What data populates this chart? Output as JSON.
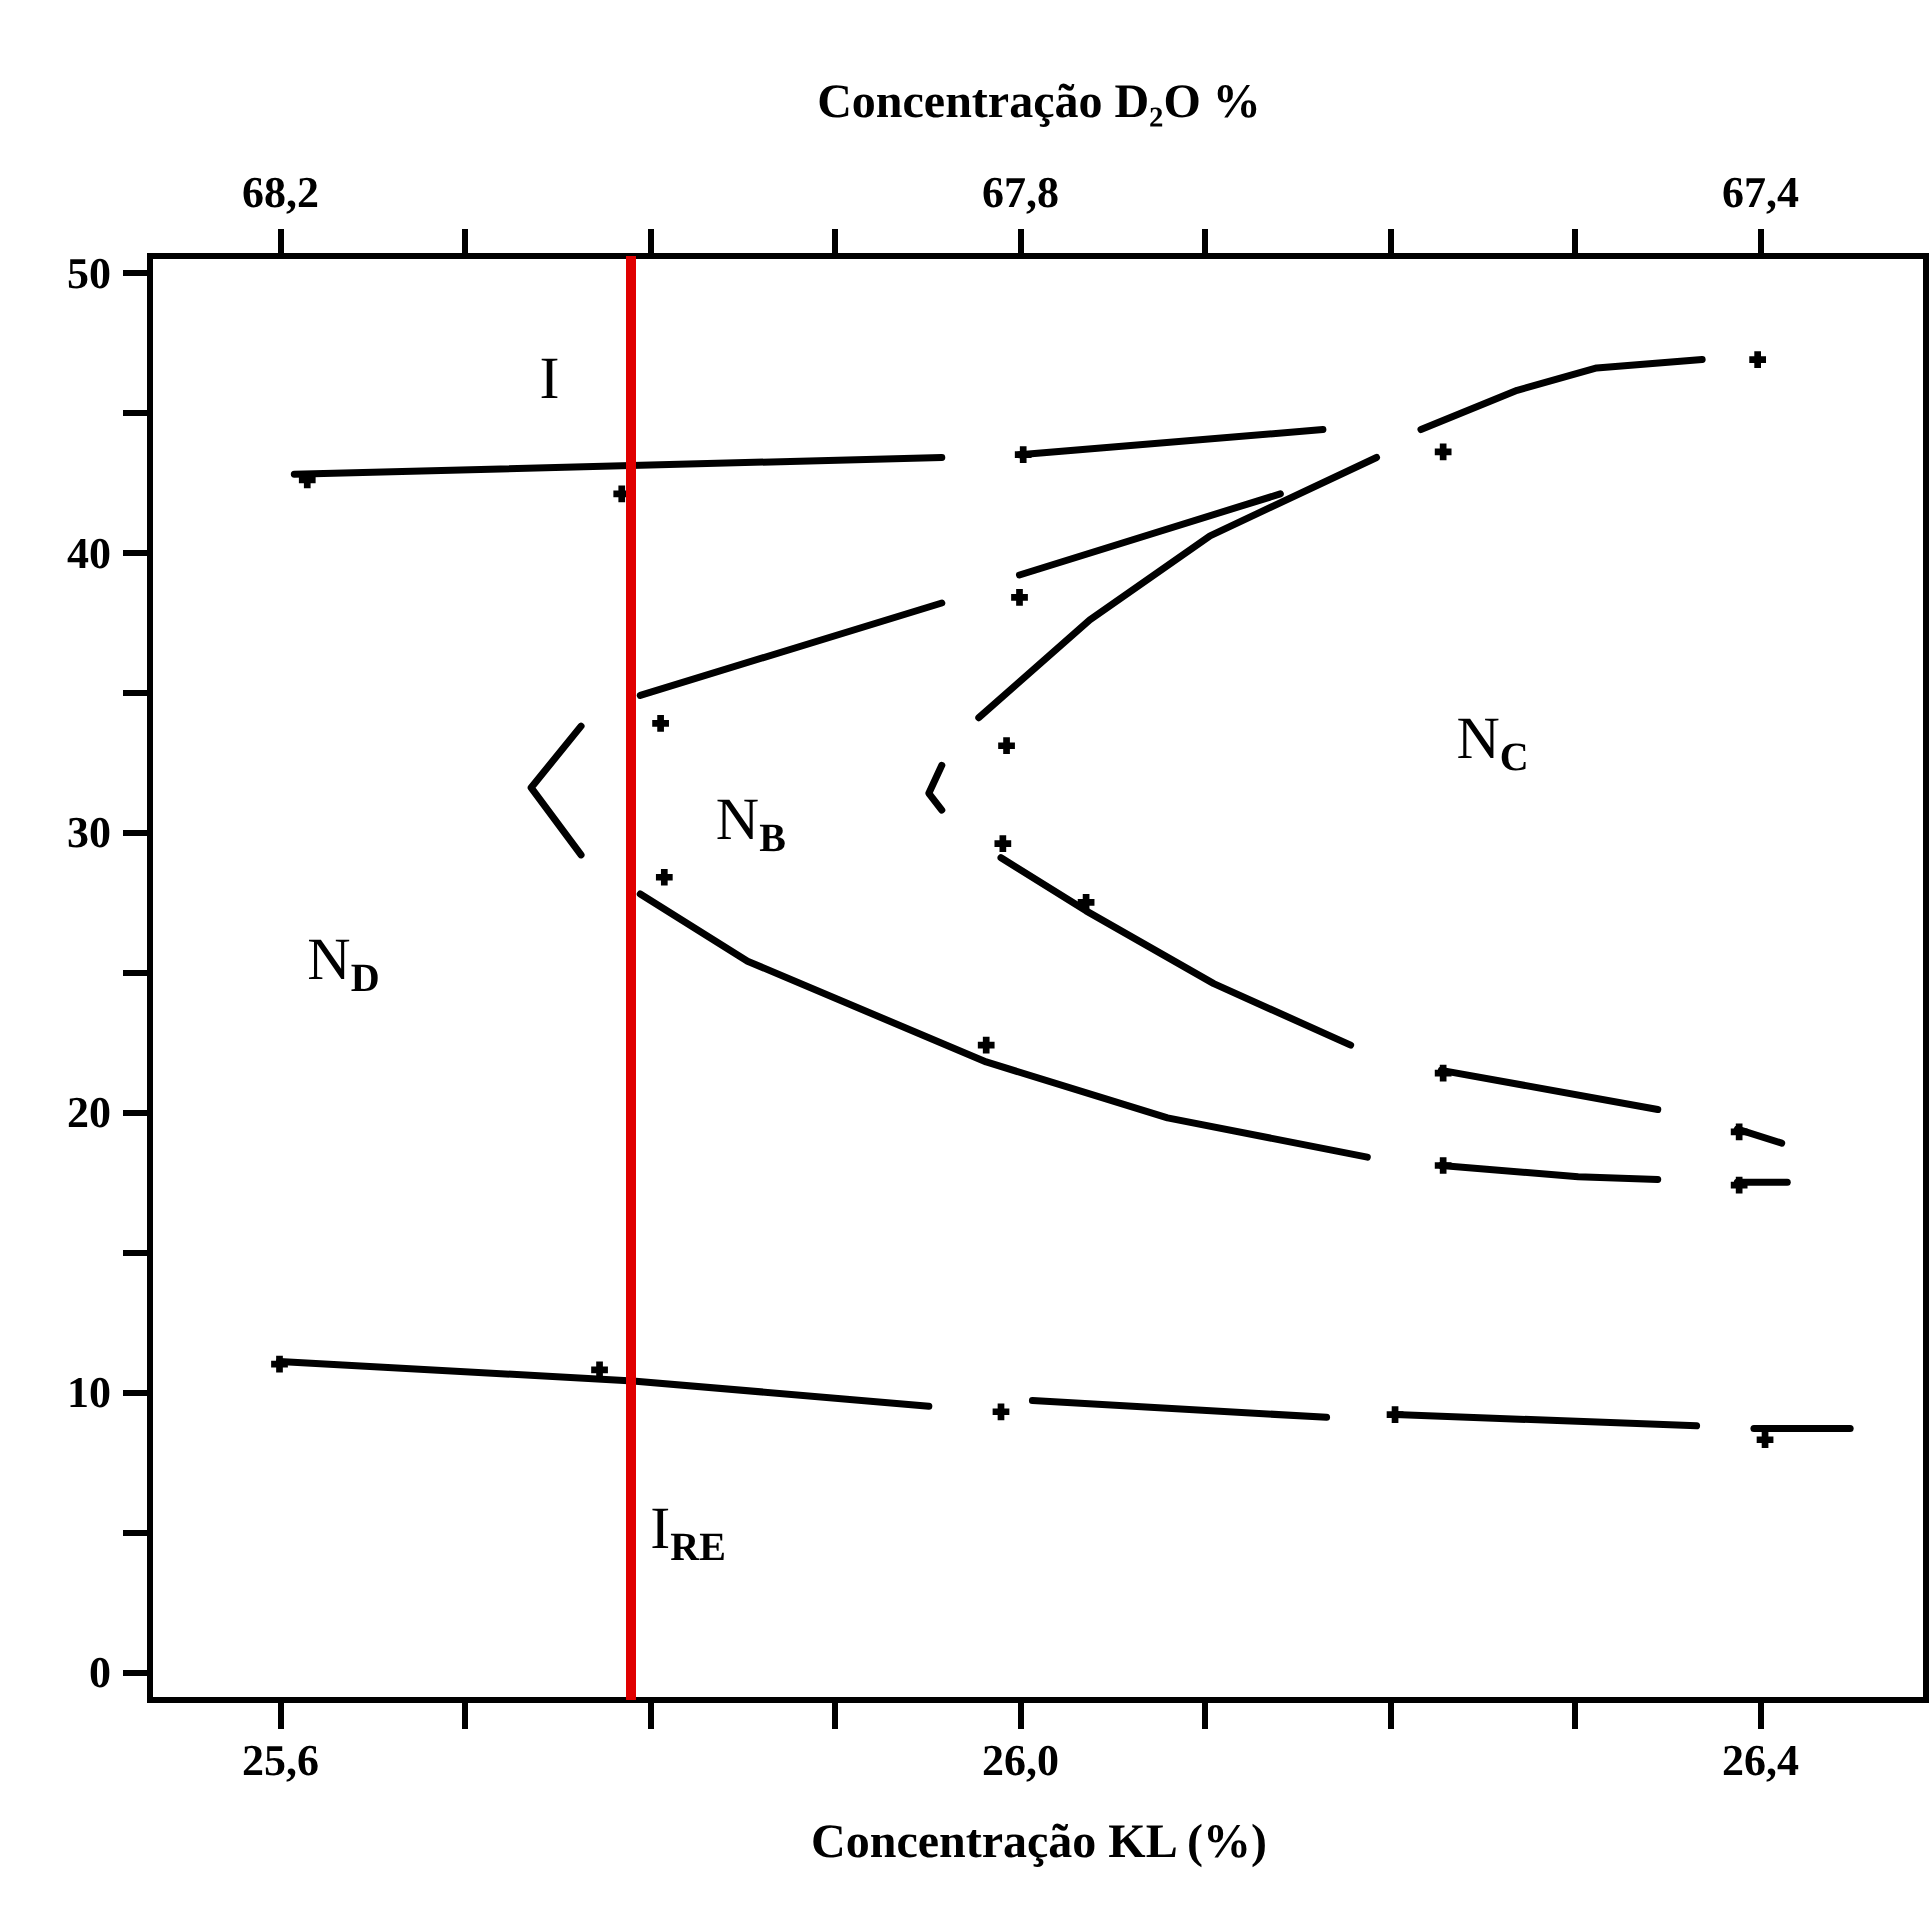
{
  "chart_data": {
    "type": "line",
    "xlabel": "Concentração KL (%)",
    "x2label": "Concentração D₂O %",
    "xlim": [
      25.53,
      26.49
    ],
    "xticks": [
      {
        "value": 25.6,
        "label": "25,6"
      },
      {
        "value": 25.7,
        "label": null
      },
      {
        "value": 25.8,
        "label": null
      },
      {
        "value": 25.9,
        "label": null
      },
      {
        "value": 26.0,
        "label": "26,0"
      },
      {
        "value": 26.1,
        "label": null
      },
      {
        "value": 26.2,
        "label": null
      },
      {
        "value": 26.3,
        "label": null
      },
      {
        "value": 26.4,
        "label": "26,4"
      }
    ],
    "x2lim": [
      68.27,
      67.31
    ],
    "x2ticks": [
      {
        "value": 68.2,
        "label": "68,2"
      },
      {
        "value": 68.1,
        "label": null
      },
      {
        "value": 68.0,
        "label": null
      },
      {
        "value": 67.9,
        "label": null
      },
      {
        "value": 67.8,
        "label": "67,8"
      },
      {
        "value": 67.7,
        "label": null
      },
      {
        "value": 67.6,
        "label": null
      },
      {
        "value": 67.5,
        "label": null
      },
      {
        "value": 67.4,
        "label": "67,4"
      }
    ],
    "ylim": [
      -1,
      50.6
    ],
    "yticks": [
      0,
      {
        "value": 5,
        "label": null
      },
      10,
      {
        "value": 15,
        "label": null
      },
      20,
      {
        "value": 25,
        "label": null
      },
      30,
      {
        "value": 35,
        "label": null
      },
      40,
      {
        "value": 45,
        "label": null
      },
      50
    ],
    "grid": false,
    "legend": false,
    "line_style": "solid",
    "series": [
      {
        "color": "#000000",
        "x": [
          25.608,
          25.958
        ],
        "values": [
          42.8,
          43.4
        ]
      },
      {
        "color": "#000000",
        "x": [
          26.0,
          26.164
        ],
        "values": [
          43.5,
          44.4
        ]
      },
      {
        "color": "#000000",
        "x": [
          26.217,
          26.269,
          26.312,
          26.369
        ],
        "values": [
          44.4,
          45.8,
          46.6,
          46.9
        ]
      },
      {
        "color": "#000000",
        "x": [
          25.795,
          25.958
        ],
        "values": [
          34.9,
          38.2
        ]
      },
      {
        "color": "#000000",
        "x": [
          26.0,
          26.141
        ],
        "values": [
          39.2,
          42.1
        ]
      },
      {
        "color": "#000000",
        "x": [
          25.978,
          26.038,
          26.103,
          26.193
        ],
        "values": [
          34.1,
          37.6,
          40.6,
          43.4
        ]
      },
      {
        "color": "#000000",
        "x": [
          25.763,
          25.736,
          25.763
        ],
        "values": [
          33.8,
          31.6,
          29.2
        ]
      },
      {
        "color": "#000000",
        "x": [
          25.958,
          25.951,
          25.958
        ],
        "values": [
          32.4,
          31.4,
          30.8
        ]
      },
      {
        "color": "#000000",
        "x": [
          25.795,
          25.853,
          25.982,
          26.08,
          26.188
        ],
        "values": [
          27.8,
          25.4,
          21.8,
          19.8,
          18.4
        ]
      },
      {
        "color": "#000000",
        "x": [
          25.99,
          26.036,
          26.105,
          26.179
        ],
        "values": [
          29.1,
          27.2,
          24.6,
          22.4
        ]
      },
      {
        "color": "#000000",
        "x": [
          26.228,
          26.345
        ],
        "values": [
          21.5,
          20.1
        ]
      },
      {
        "color": "#000000",
        "x": [
          26.388,
          26.412
        ],
        "values": [
          19.4,
          18.9
        ]
      },
      {
        "color": "#000000",
        "x": [
          26.228,
          26.302,
          26.345
        ],
        "values": [
          18.1,
          17.7,
          17.6
        ]
      },
      {
        "color": "#000000",
        "x": [
          26.388,
          26.415
        ],
        "values": [
          17.5,
          17.5
        ]
      },
      {
        "color": "#000000",
        "x": [
          25.6,
          25.791,
          25.951
        ],
        "values": [
          11.1,
          10.4,
          9.5
        ]
      },
      {
        "color": "#000000",
        "x": [
          26.007,
          26.166
        ],
        "values": [
          9.7,
          9.1
        ]
      },
      {
        "color": "#000000",
        "x": [
          26.203,
          26.366
        ],
        "values": [
          9.2,
          8.8
        ]
      },
      {
        "color": "#000000",
        "x": [
          26.397,
          26.449
        ],
        "values": [
          8.7,
          8.7
        ]
      },
      {
        "type": "scatter",
        "color": "#000000",
        "marker": "cross",
        "x": [
          25.615,
          25.785,
          26.002,
          26.229,
          26.399,
          26.0,
          25.806,
          25.993,
          25.808,
          25.991,
          26.036,
          25.982,
          26.229,
          26.389,
          26.229,
          26.389,
          25.6,
          25.773,
          25.99,
          26.203,
          26.403
        ],
        "values": [
          42.6,
          42.1,
          43.5,
          43.6,
          46.9,
          38.4,
          33.9,
          33.1,
          28.4,
          29.6,
          27.5,
          22.4,
          21.4,
          19.3,
          18.1,
          17.4,
          11.0,
          10.8,
          9.3,
          9.2,
          8.3
        ]
      }
    ],
    "ref_lines": [
      {
        "axis": "x",
        "value": 25.79,
        "color": "#e00000"
      }
    ],
    "annotations": [
      "I",
      "N$_{D}$",
      "N$_{B}$",
      "N$_{C}$",
      "I$_{RE}$"
    ]
  }
}
